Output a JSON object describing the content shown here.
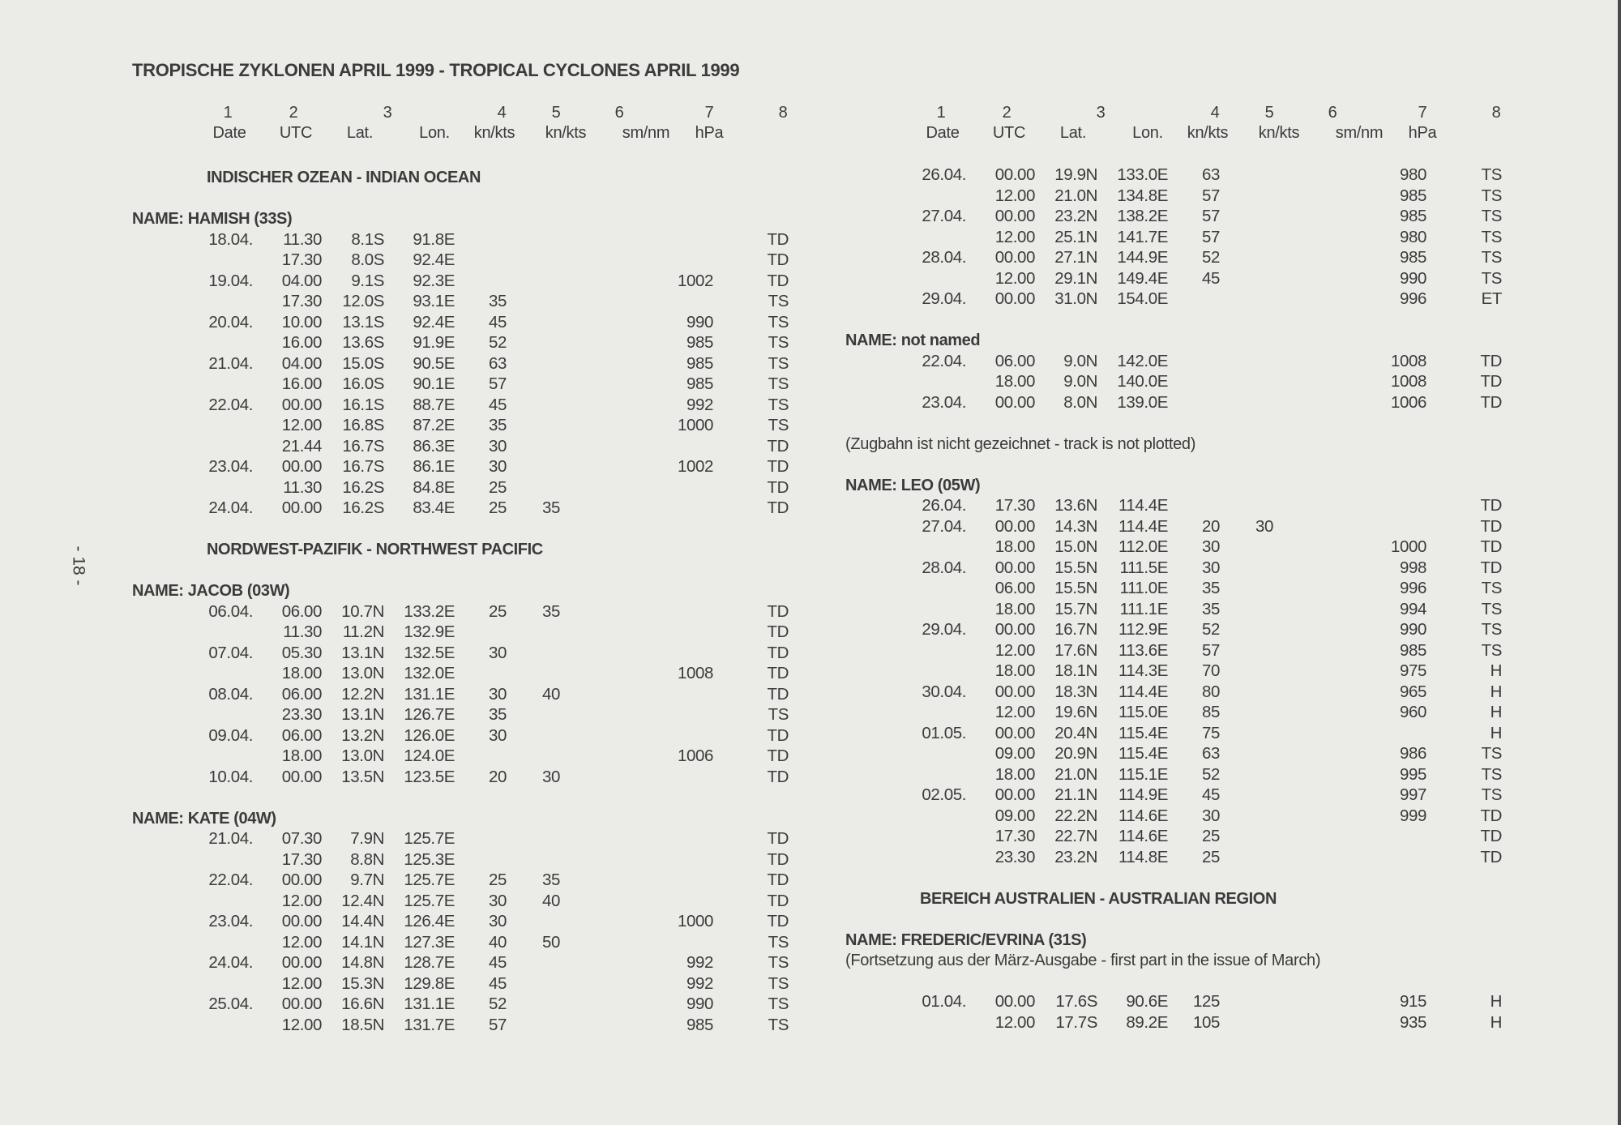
{
  "title": "TROPISCHE ZYKLONEN APRIL 1999 - TROPICAL CYCLONES APRIL 1999",
  "page_number": "- 18 -",
  "header": {
    "numbers": [
      "1",
      "2",
      "3",
      "4",
      "5",
      "6",
      "7",
      "8"
    ],
    "labels": [
      "Date",
      "UTC",
      "Lat.",
      "Lon.",
      "kn/kts",
      "kn/kts",
      "sm/nm",
      "hPa"
    ]
  },
  "columns": [
    {
      "blocks": [
        {
          "type": "region",
          "text": "INDISCHER OZEAN - INDIAN OCEAN"
        },
        {
          "type": "name",
          "text": "NAME: HAMISH (33S)"
        },
        {
          "type": "row",
          "cells": [
            "18.04.",
            "11.30",
            "8.1S",
            "91.8E",
            "",
            "",
            "",
            "",
            "TD"
          ]
        },
        {
          "type": "row",
          "cells": [
            "",
            "17.30",
            "8.0S",
            "92.4E",
            "",
            "",
            "",
            "",
            "TD"
          ]
        },
        {
          "type": "row",
          "cells": [
            "19.04.",
            "04.00",
            "9.1S",
            "92.3E",
            "",
            "",
            "",
            "1002",
            "TD"
          ]
        },
        {
          "type": "row",
          "cells": [
            "",
            "17.30",
            "12.0S",
            "93.1E",
            "35",
            "",
            "",
            "",
            "TS"
          ]
        },
        {
          "type": "row",
          "cells": [
            "20.04.",
            "10.00",
            "13.1S",
            "92.4E",
            "45",
            "",
            "",
            "990",
            "TS"
          ]
        },
        {
          "type": "row",
          "cells": [
            "",
            "16.00",
            "13.6S",
            "91.9E",
            "52",
            "",
            "",
            "985",
            "TS"
          ]
        },
        {
          "type": "row",
          "cells": [
            "21.04.",
            "04.00",
            "15.0S",
            "90.5E",
            "63",
            "",
            "",
            "985",
            "TS"
          ]
        },
        {
          "type": "row",
          "cells": [
            "",
            "16.00",
            "16.0S",
            "90.1E",
            "57",
            "",
            "",
            "985",
            "TS"
          ]
        },
        {
          "type": "row",
          "cells": [
            "22.04.",
            "00.00",
            "16.1S",
            "88.7E",
            "45",
            "",
            "",
            "992",
            "TS"
          ]
        },
        {
          "type": "row",
          "cells": [
            "",
            "12.00",
            "16.8S",
            "87.2E",
            "35",
            "",
            "",
            "1000",
            "TS"
          ]
        },
        {
          "type": "row",
          "cells": [
            "",
            "21.44",
            "16.7S",
            "86.3E",
            "30",
            "",
            "",
            "",
            "TD"
          ]
        },
        {
          "type": "row",
          "cells": [
            "23.04.",
            "00.00",
            "16.7S",
            "86.1E",
            "30",
            "",
            "",
            "1002",
            "TD"
          ]
        },
        {
          "type": "row",
          "cells": [
            "",
            "11.30",
            "16.2S",
            "84.8E",
            "25",
            "",
            "",
            "",
            "TD"
          ]
        },
        {
          "type": "row",
          "cells": [
            "24.04.",
            "00.00",
            "16.2S",
            "83.4E",
            "25",
            "35",
            "",
            "",
            "TD"
          ]
        },
        {
          "type": "region",
          "text": "NORDWEST-PAZIFIK - NORTHWEST PACIFIC"
        },
        {
          "type": "name",
          "text": "NAME: JACOB (03W)"
        },
        {
          "type": "row",
          "cells": [
            "06.04.",
            "06.00",
            "10.7N",
            "133.2E",
            "25",
            "35",
            "",
            "",
            "TD"
          ]
        },
        {
          "type": "row",
          "cells": [
            "",
            "11.30",
            "11.2N",
            "132.9E",
            "",
            "",
            "",
            "",
            "TD"
          ]
        },
        {
          "type": "row",
          "cells": [
            "07.04.",
            "05.30",
            "13.1N",
            "132.5E",
            "30",
            "",
            "",
            "",
            "TD"
          ]
        },
        {
          "type": "row",
          "cells": [
            "",
            "18.00",
            "13.0N",
            "132.0E",
            "",
            "",
            "",
            "1008",
            "TD"
          ]
        },
        {
          "type": "row",
          "cells": [
            "08.04.",
            "06.00",
            "12.2N",
            "131.1E",
            "30",
            "40",
            "",
            "",
            "TD"
          ]
        },
        {
          "type": "row",
          "cells": [
            "",
            "23.30",
            "13.1N",
            "126.7E",
            "35",
            "",
            "",
            "",
            "TS"
          ]
        },
        {
          "type": "row",
          "cells": [
            "09.04.",
            "06.00",
            "13.2N",
            "126.0E",
            "30",
            "",
            "",
            "",
            "TD"
          ]
        },
        {
          "type": "row",
          "cells": [
            "",
            "18.00",
            "13.0N",
            "124.0E",
            "",
            "",
            "",
            "1006",
            "TD"
          ]
        },
        {
          "type": "row",
          "cells": [
            "10.04.",
            "00.00",
            "13.5N",
            "123.5E",
            "20",
            "30",
            "",
            "",
            "TD"
          ]
        },
        {
          "type": "name",
          "text": "NAME: KATE (04W)"
        },
        {
          "type": "row",
          "cells": [
            "21.04.",
            "07.30",
            "7.9N",
            "125.7E",
            "",
            "",
            "",
            "",
            "TD"
          ]
        },
        {
          "type": "row",
          "cells": [
            "",
            "17.30",
            "8.8N",
            "125.3E",
            "",
            "",
            "",
            "",
            "TD"
          ]
        },
        {
          "type": "row",
          "cells": [
            "22.04.",
            "00.00",
            "9.7N",
            "125.7E",
            "25",
            "35",
            "",
            "",
            "TD"
          ]
        },
        {
          "type": "row",
          "cells": [
            "",
            "12.00",
            "12.4N",
            "125.7E",
            "30",
            "40",
            "",
            "",
            "TD"
          ]
        },
        {
          "type": "row",
          "cells": [
            "23.04.",
            "00.00",
            "14.4N",
            "126.4E",
            "30",
            "",
            "",
            "1000",
            "TD"
          ]
        },
        {
          "type": "row",
          "cells": [
            "",
            "12.00",
            "14.1N",
            "127.3E",
            "40",
            "50",
            "",
            "",
            "TS"
          ]
        },
        {
          "type": "row",
          "cells": [
            "24.04.",
            "00.00",
            "14.8N",
            "128.7E",
            "45",
            "",
            "",
            "992",
            "TS"
          ]
        },
        {
          "type": "row",
          "cells": [
            "",
            "12.00",
            "15.3N",
            "129.8E",
            "45",
            "",
            "",
            "992",
            "TS"
          ]
        },
        {
          "type": "row",
          "cells": [
            "25.04.",
            "00.00",
            "16.6N",
            "131.1E",
            "52",
            "",
            "",
            "990",
            "TS"
          ]
        },
        {
          "type": "row",
          "cells": [
            "",
            "12.00",
            "18.5N",
            "131.7E",
            "57",
            "",
            "",
            "985",
            "TS"
          ]
        }
      ]
    },
    {
      "blocks": [
        {
          "type": "row",
          "cells": [
            "26.04.",
            "00.00",
            "19.9N",
            "133.0E",
            "63",
            "",
            "",
            "980",
            "TS"
          ]
        },
        {
          "type": "row",
          "cells": [
            "",
            "12.00",
            "21.0N",
            "134.8E",
            "57",
            "",
            "",
            "985",
            "TS"
          ]
        },
        {
          "type": "row",
          "cells": [
            "27.04.",
            "00.00",
            "23.2N",
            "138.2E",
            "57",
            "",
            "",
            "985",
            "TS"
          ]
        },
        {
          "type": "row",
          "cells": [
            "",
            "12.00",
            "25.1N",
            "141.7E",
            "57",
            "",
            "",
            "980",
            "TS"
          ]
        },
        {
          "type": "row",
          "cells": [
            "28.04.",
            "00.00",
            "27.1N",
            "144.9E",
            "52",
            "",
            "",
            "985",
            "TS"
          ]
        },
        {
          "type": "row",
          "cells": [
            "",
            "12.00",
            "29.1N",
            "149.4E",
            "45",
            "",
            "",
            "990",
            "TS"
          ]
        },
        {
          "type": "row",
          "cells": [
            "29.04.",
            "00.00",
            "31.0N",
            "154.0E",
            "",
            "",
            "",
            "996",
            "ET"
          ]
        },
        {
          "type": "name",
          "text": "NAME: not named"
        },
        {
          "type": "row",
          "cells": [
            "22.04.",
            "06.00",
            "9.0N",
            "142.0E",
            "",
            "",
            "",
            "1008",
            "TD"
          ]
        },
        {
          "type": "row",
          "cells": [
            "",
            "18.00",
            "9.0N",
            "140.0E",
            "",
            "",
            "",
            "1008",
            "TD"
          ]
        },
        {
          "type": "row",
          "cells": [
            "23.04.",
            "00.00",
            "8.0N",
            "139.0E",
            "",
            "",
            "",
            "1006",
            "TD"
          ]
        },
        {
          "type": "note",
          "text": "(Zugbahn ist nicht gezeichnet - track is not plotted)"
        },
        {
          "type": "name",
          "text": "NAME: LEO (05W)"
        },
        {
          "type": "row",
          "cells": [
            "26.04.",
            "17.30",
            "13.6N",
            "114.4E",
            "",
            "",
            "",
            "",
            "TD"
          ]
        },
        {
          "type": "row",
          "cells": [
            "27.04.",
            "00.00",
            "14.3N",
            "114.4E",
            "20",
            "30",
            "",
            "",
            "TD"
          ]
        },
        {
          "type": "row",
          "cells": [
            "",
            "18.00",
            "15.0N",
            "112.0E",
            "30",
            "",
            "",
            "1000",
            "TD"
          ]
        },
        {
          "type": "row",
          "cells": [
            "28.04.",
            "00.00",
            "15.5N",
            "111.5E",
            "30",
            "",
            "",
            "998",
            "TD"
          ]
        },
        {
          "type": "row",
          "cells": [
            "",
            "06.00",
            "15.5N",
            "111.0E",
            "35",
            "",
            "",
            "996",
            "TS"
          ]
        },
        {
          "type": "row",
          "cells": [
            "",
            "18.00",
            "15.7N",
            "111.1E",
            "35",
            "",
            "",
            "994",
            "TS"
          ]
        },
        {
          "type": "row",
          "cells": [
            "29.04.",
            "00.00",
            "16.7N",
            "112.9E",
            "52",
            "",
            "",
            "990",
            "TS"
          ]
        },
        {
          "type": "row",
          "cells": [
            "",
            "12.00",
            "17.6N",
            "113.6E",
            "57",
            "",
            "",
            "985",
            "TS"
          ]
        },
        {
          "type": "row",
          "cells": [
            "",
            "18.00",
            "18.1N",
            "114.3E",
            "70",
            "",
            "",
            "975",
            "H"
          ]
        },
        {
          "type": "row",
          "cells": [
            "30.04.",
            "00.00",
            "18.3N",
            "114.4E",
            "80",
            "",
            "",
            "965",
            "H"
          ]
        },
        {
          "type": "row",
          "cells": [
            "",
            "12.00",
            "19.6N",
            "115.0E",
            "85",
            "",
            "",
            "960",
            "H"
          ]
        },
        {
          "type": "row",
          "cells": [
            "01.05.",
            "00.00",
            "20.4N",
            "115.4E",
            "75",
            "",
            "",
            "",
            "H"
          ]
        },
        {
          "type": "row",
          "cells": [
            "",
            "09.00",
            "20.9N",
            "115.4E",
            "63",
            "",
            "",
            "986",
            "TS"
          ]
        },
        {
          "type": "row",
          "cells": [
            "",
            "18.00",
            "21.0N",
            "115.1E",
            "52",
            "",
            "",
            "995",
            "TS"
          ]
        },
        {
          "type": "row",
          "cells": [
            "02.05.",
            "00.00",
            "21.1N",
            "114.9E",
            "45",
            "",
            "",
            "997",
            "TS"
          ]
        },
        {
          "type": "row",
          "cells": [
            "",
            "09.00",
            "22.2N",
            "114.6E",
            "30",
            "",
            "",
            "999",
            "TD"
          ]
        },
        {
          "type": "row",
          "cells": [
            "",
            "17.30",
            "22.7N",
            "114.6E",
            "25",
            "",
            "",
            "",
            "TD"
          ]
        },
        {
          "type": "row",
          "cells": [
            "",
            "23.30",
            "23.2N",
            "114.8E",
            "25",
            "",
            "",
            "",
            "TD"
          ]
        },
        {
          "type": "region",
          "text": "BEREICH AUSTRALIEN - AUSTRALIAN REGION"
        },
        {
          "type": "name",
          "text": "NAME: FREDERIC/EVRINA (31S)"
        },
        {
          "type": "note",
          "text": "(Fortsetzung aus der März-Ausgabe - first part in the issue of March)"
        },
        {
          "type": "row",
          "cells": [
            "01.04.",
            "00.00",
            "17.6S",
            "90.6E",
            "125",
            "",
            "",
            "915",
            "H"
          ]
        },
        {
          "type": "row",
          "cells": [
            "",
            "12.00",
            "17.7S",
            "89.2E",
            "105",
            "",
            "",
            "935",
            "H"
          ]
        }
      ]
    }
  ]
}
